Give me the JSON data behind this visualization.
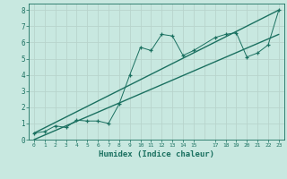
{
  "xlabel": "Humidex (Indice chaleur)",
  "xlim": [
    -0.5,
    23.5
  ],
  "ylim": [
    0,
    8.4
  ],
  "xticks": [
    0,
    1,
    2,
    3,
    4,
    5,
    6,
    7,
    8,
    9,
    10,
    11,
    12,
    13,
    14,
    15,
    17,
    18,
    19,
    20,
    21,
    22,
    23
  ],
  "yticks": [
    0,
    1,
    2,
    3,
    4,
    5,
    6,
    7,
    8
  ],
  "data_x": [
    0,
    1,
    2,
    3,
    4,
    5,
    6,
    7,
    8,
    9,
    10,
    11,
    12,
    13,
    14,
    15,
    17,
    18,
    19,
    20,
    21,
    22,
    23
  ],
  "data_y": [
    0.4,
    0.5,
    0.85,
    0.75,
    1.2,
    1.15,
    1.15,
    1.0,
    2.2,
    4.0,
    5.7,
    5.5,
    6.5,
    6.4,
    5.2,
    5.5,
    6.3,
    6.5,
    6.6,
    5.1,
    5.35,
    5.85,
    8.0
  ],
  "line1_x": [
    0,
    23
  ],
  "line1_y": [
    0.4,
    8.0
  ],
  "line2_x": [
    0,
    23
  ],
  "line2_y": [
    0.0,
    6.5
  ],
  "line_color": "#1a7060",
  "bg_color": "#c8e8e0",
  "grid_color": "#b8d4cc"
}
